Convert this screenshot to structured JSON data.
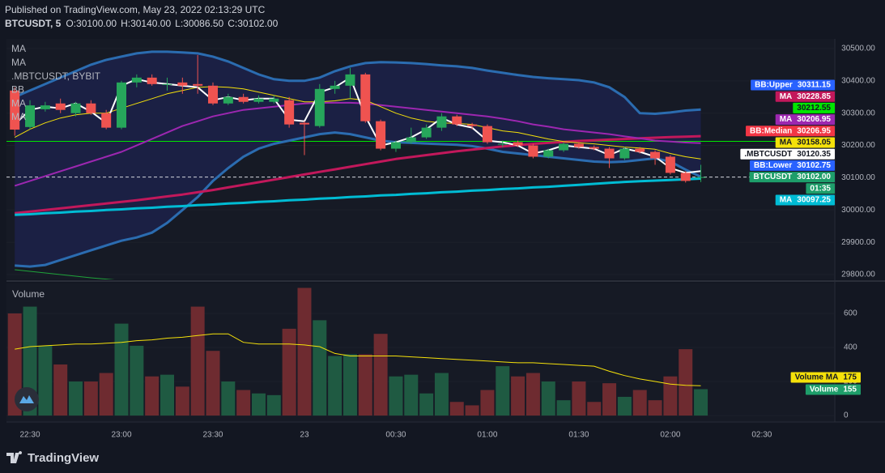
{
  "chart_data": [
    {
      "type": "candlestick",
      "title": "Published on TradingView.com, May 23, 2022 02:13:29 UTC",
      "subtitle": "BTCUSDT, 5",
      "ohlc": [
        {
          "key": "O:",
          "value": {
            "value": 30100,
            "label": "30100.00"
          }
        },
        {
          "key": "H:",
          "value": {
            "value": 30140,
            "label": "30140.00"
          }
        },
        {
          "key": "L:",
          "value": {
            "value": 30086.5,
            "label": "30086.50"
          }
        },
        {
          "key": "C:",
          "value": {
            "value": 30102,
            "label": "30102.00"
          }
        }
      ],
      "legend": [
        "MA",
        "MA",
        ".MBTCUSDT, BYBIT",
        "BB",
        "MA",
        "MA"
      ],
      "brand": "TradingView",
      "up_color": "#26a65b",
      "down_color": "#ef5350",
      "open": [
        30370,
        30257,
        30312,
        30330,
        30300,
        30330,
        30300,
        30255,
        30395,
        30410,
        30390,
        30395,
        30390,
        30385,
        30330,
        30350,
        30335,
        30335,
        30340,
        30270,
        30260,
        30375,
        30385,
        30420,
        30275,
        30190,
        30210,
        30225,
        30255,
        30290,
        30265,
        30260,
        30205,
        30210,
        30200,
        30165,
        30185,
        30205,
        30195,
        30190,
        30160,
        30190,
        30180,
        30165,
        30115,
        30100,
        null,
        null,
        null,
        null
      ],
      "high": [
        30380,
        30340,
        30335,
        30345,
        30335,
        30340,
        30310,
        30400,
        30420,
        30420,
        30410,
        30410,
        30480,
        30395,
        30360,
        30360,
        30355,
        30355,
        30350,
        30275,
        30390,
        30400,
        30440,
        30425,
        30280,
        30215,
        30255,
        30265,
        30300,
        30295,
        30270,
        30265,
        30215,
        30215,
        30205,
        30190,
        30210,
        30210,
        30200,
        30195,
        30195,
        30195,
        30185,
        30170,
        30120,
        30140,
        null,
        null,
        null,
        null
      ],
      "low": [
        30230,
        30250,
        30305,
        30300,
        30290,
        30295,
        30250,
        30250,
        30380,
        30385,
        30370,
        30360,
        30360,
        30325,
        30325,
        30330,
        30330,
        30330,
        30255,
        30170,
        30255,
        30360,
        30345,
        30270,
        30185,
        30180,
        30205,
        30220,
        30245,
        30260,
        30250,
        30205,
        30195,
        30195,
        30160,
        30160,
        30180,
        30190,
        30185,
        30130,
        30155,
        30175,
        30140,
        30110,
        30085,
        30086.5,
        null,
        null,
        null,
        null
      ],
      "close": [
        30249,
        30324,
        30324,
        30310,
        30330,
        30300,
        30255,
        30395,
        30410,
        30390,
        30390,
        30385,
        30385,
        30330,
        30350,
        30335,
        30345,
        30345,
        30265,
        30265,
        30375,
        30385,
        30420,
        30275,
        30190,
        30210,
        30225,
        30255,
        30290,
        30265,
        30260,
        30210,
        30205,
        30200,
        30165,
        30185,
        30205,
        30195,
        30190,
        30160,
        30190,
        30180,
        30160,
        30115,
        30090,
        30102,
        null,
        null,
        null,
        null
      ],
      "bb": {
        "color": "#2b6cb0",
        "fill": "#1b2044",
        "upper": [
          30350,
          30370,
          30390,
          30410,
          30430,
          30450,
          30465,
          30475,
          30485,
          30490,
          30490,
          30488,
          30485,
          30475,
          30460,
          30440,
          30420,
          30405,
          30400,
          30400,
          30410,
          30430,
          30445,
          30455,
          30458,
          30457,
          30455,
          30452,
          30448,
          30445,
          30440,
          30432,
          30425,
          30418,
          30412,
          30408,
          30405,
          30402,
          30395,
          30380,
          30350,
          30300,
          30298,
          30302,
          30308,
          30311.15,
          null,
          null,
          null,
          null
        ],
        "lower": [
          29828,
          29825,
          29830,
          29845,
          29860,
          29875,
          29890,
          29905,
          29915,
          29930,
          29960,
          30000,
          30040,
          30090,
          30130,
          30165,
          30190,
          30205,
          30215,
          30225,
          30235,
          30240,
          30235,
          30225,
          30215,
          30210,
          30208,
          30206,
          30204,
          30202,
          30198,
          30190,
          30180,
          30175,
          30170,
          30165,
          30160,
          30155,
          30150,
          30148,
          30150,
          30155,
          30160,
          30150,
          30125,
          30102.75,
          null,
          null,
          null,
          null
        ]
      },
      "series": [
        {
          "color": "#1fa33a",
          "width": 1,
          "values": [
            29815,
            29810,
            29805,
            29800,
            29795,
            29790,
            29786,
            29782,
            29778,
            null,
            null,
            null,
            null,
            null,
            null,
            null,
            null,
            null,
            null,
            null,
            null,
            null,
            null,
            null,
            null,
            null,
            null,
            null,
            null,
            null,
            null,
            null,
            null,
            null,
            null,
            null,
            null,
            null,
            null,
            null,
            null,
            null,
            null,
            null,
            null,
            null,
            null,
            null,
            null,
            null
          ]
        },
        {
          "color": "#c2185b",
          "width": 3,
          "values": [
            29990,
            29995,
            30000,
            30005,
            30010,
            30015,
            30020,
            30025,
            30030,
            30036,
            30042,
            30048,
            30055,
            30062,
            30070,
            30078,
            30086,
            30094,
            30102,
            30110,
            30118,
            30126,
            30134,
            30142,
            30150,
            30158,
            30164,
            30170,
            30176,
            30182,
            30187,
            30192,
            30197,
            30201,
            30205,
            30208,
            30211,
            30214,
            30216,
            30218,
            30220,
            30222,
            30224,
            30226,
            30227,
            30228.85,
            null,
            null,
            null,
            null
          ]
        },
        {
          "color": "#9c27b0",
          "width": 2,
          "values": [
            30075,
            30090,
            30105,
            30120,
            30135,
            30150,
            30165,
            30180,
            30200,
            30220,
            30240,
            30260,
            30275,
            30290,
            30300,
            30310,
            30315,
            30320,
            30325,
            30330,
            30332,
            30332,
            30332,
            30330,
            30325,
            30320,
            30315,
            30310,
            30305,
            30300,
            30295,
            30290,
            30283,
            30275,
            30265,
            30258,
            30250,
            30245,
            30240,
            30235,
            30228,
            30222,
            30215,
            30212,
            30209,
            30206.95,
            null,
            null,
            null,
            null
          ]
        },
        {
          "color": "#00bcd4",
          "width": 3,
          "values": [
            29985,
            29987,
            29990,
            29992,
            29995,
            29997,
            30000,
            30002,
            30005,
            30007,
            30010,
            30012,
            30015,
            30017,
            30020,
            30022,
            30025,
            30027,
            30030,
            30032,
            30035,
            30037,
            30040,
            30042,
            30045,
            30047,
            30050,
            30052,
            30055,
            30057,
            30060,
            30062,
            30065,
            30067,
            30070,
            30072,
            30075,
            30078,
            30081,
            30084,
            30087,
            30089,
            30091,
            30093,
            30095,
            30097.25,
            null,
            null,
            null,
            null
          ]
        },
        {
          "color": "#f5e10a",
          "width": 1,
          "values": [
            30225,
            30250,
            30270,
            30285,
            30295,
            30300,
            30300,
            30315,
            30330,
            30345,
            30360,
            30370,
            30380,
            30382,
            30380,
            30375,
            30365,
            30355,
            30345,
            30335,
            30335,
            30338,
            30345,
            30340,
            30320,
            30300,
            30285,
            30275,
            30270,
            30268,
            30265,
            30255,
            30245,
            30240,
            30230,
            30220,
            30212,
            30208,
            30205,
            30200,
            30195,
            30192,
            30188,
            30175,
            30165,
            30158.05,
            null,
            null,
            null,
            null
          ]
        },
        {
          "color": "#ffffff",
          "width": 2,
          "values": [
            30265,
            30310,
            30320,
            30315,
            30330,
            30305,
            30270,
            30385,
            30405,
            30395,
            30390,
            30385,
            30380,
            30340,
            30350,
            30340,
            30345,
            30345,
            30280,
            30275,
            30365,
            30380,
            30410,
            30290,
            30200,
            30210,
            30225,
            30250,
            30285,
            30265,
            30255,
            30215,
            30210,
            30200,
            30175,
            30185,
            30200,
            30195,
            30190,
            30170,
            30190,
            30180,
            30165,
            30130,
            30115,
            30120.35,
            null,
            null,
            null,
            null
          ]
        }
      ],
      "ylim": [
        29785,
        30530
      ],
      "yticks": [
        {
          "value": 29800,
          "label": "29800.00"
        },
        {
          "value": 29900,
          "label": "29900.00"
        },
        {
          "value": 30000,
          "label": "30000.00"
        },
        {
          "value": 30100,
          "label": "30100.00"
        },
        {
          "value": 30200,
          "label": "30200.00"
        },
        {
          "value": 30300,
          "label": "30300.00"
        },
        {
          "value": 30400,
          "label": "30400.00"
        },
        {
          "value": 30500,
          "label": "30500.00"
        }
      ],
      "price_labels": [
        {
          "name": "BB:Upper",
          "value": 30311.15,
          "color": "#2962ff"
        },
        {
          "name": "MA",
          "value": 30228.85,
          "color": "#c2185b"
        },
        {
          "value": 30212.55,
          "color": "#00e600",
          "line": "solid"
        },
        {
          "name": "MA",
          "value": 30206.95,
          "color": "#9c27b0"
        },
        {
          "name": "BB:Median",
          "value": 30206.95,
          "color": "#f23645"
        },
        {
          "name": "MA",
          "value": 30158.05,
          "color": "#f5e10a"
        },
        {
          "name": ".MBTCUSDT",
          "value": 30120.35,
          "color": "#ffffff"
        },
        {
          "name": "BB:Lower",
          "value": 30102.75,
          "color": "#2962ff"
        },
        {
          "name": "BTCUSDT",
          "value": {
            "value": 30102,
            "label": "30102.00"
          },
          "color": "#1e9e6a",
          "line": "dashed"
        },
        {
          "name": "MA",
          "value": 30097.25,
          "color": "#00bcd4"
        }
      ],
      "countdown": "01:35"
    },
    {
      "type": "bar",
      "title": "Volume",
      "up_color": "#1f5a42",
      "down_color": "#6e2b30",
      "categories": [
        null,
        "22:30",
        null,
        null,
        null,
        null,
        null,
        "23:00",
        null,
        null,
        null,
        null,
        null,
        "23:30",
        null,
        null,
        null,
        null,
        null,
        "23",
        null,
        null,
        null,
        null,
        null,
        "00:30",
        null,
        null,
        null,
        null,
        null,
        "01:00",
        null,
        null,
        null,
        null,
        null,
        "01:30",
        null,
        null,
        null,
        null,
        null,
        "02:00",
        null,
        null,
        null,
        null,
        null,
        "02:30"
      ],
      "values": [
        600,
        640,
        410,
        300,
        200,
        200,
        250,
        540,
        410,
        230,
        240,
        170,
        640,
        380,
        200,
        150,
        130,
        120,
        510,
        750,
        560,
        350,
        360,
        360,
        480,
        230,
        240,
        130,
        250,
        80,
        60,
        150,
        290,
        230,
        250,
        200,
        90,
        200,
        80,
        190,
        110,
        150,
        90,
        230,
        390,
        155,
        null,
        null,
        null,
        null
      ],
      "label_color": "#1e9e6a",
      "series": [
        {
          "name": "Volume MA",
          "color": "#f5e10a",
          "values": [
            390,
            405,
            410,
            415,
            420,
            420,
            425,
            430,
            440,
            445,
            455,
            460,
            470,
            480,
            480,
            430,
            420,
            420,
            420,
            415,
            405,
            365,
            350,
            350,
            350,
            350,
            345,
            340,
            335,
            330,
            325,
            320,
            315,
            310,
            310,
            305,
            300,
            295,
            290,
            260,
            235,
            215,
            200,
            185,
            178,
            175,
            null,
            null,
            null,
            null
          ]
        }
      ],
      "ylim": [
        -33,
        776
      ],
      "yticks": [
        0,
        200,
        400,
        600
      ]
    }
  ]
}
